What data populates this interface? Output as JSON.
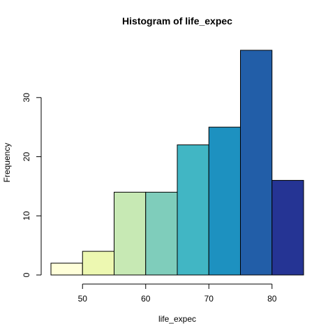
{
  "chart_data": {
    "type": "bar",
    "title": "Histogram of life_expec",
    "xlabel": "life_expec",
    "ylabel": "Frequency",
    "bins": [
      {
        "from": 45,
        "to": 50,
        "count": 2,
        "color": "#FFFFD9"
      },
      {
        "from": 50,
        "to": 55,
        "count": 4,
        "color": "#EDF8B1"
      },
      {
        "from": 55,
        "to": 60,
        "count": 14,
        "color": "#C7E9B4"
      },
      {
        "from": 60,
        "to": 65,
        "count": 14,
        "color": "#7FCDBB"
      },
      {
        "from": 65,
        "to": 70,
        "count": 22,
        "color": "#41B6C4"
      },
      {
        "from": 70,
        "to": 75,
        "count": 25,
        "color": "#1D91C0"
      },
      {
        "from": 75,
        "to": 80,
        "count": 38,
        "color": "#225EA8"
      },
      {
        "from": 80,
        "to": 85,
        "count": 16,
        "color": "#253494"
      }
    ],
    "xlim": [
      45,
      85
    ],
    "ylim": [
      0,
      38
    ],
    "x_ticks": [
      "50",
      "60",
      "70",
      "80"
    ],
    "y_ticks": [
      "0",
      "10",
      "20",
      "30"
    ],
    "grid": false
  }
}
